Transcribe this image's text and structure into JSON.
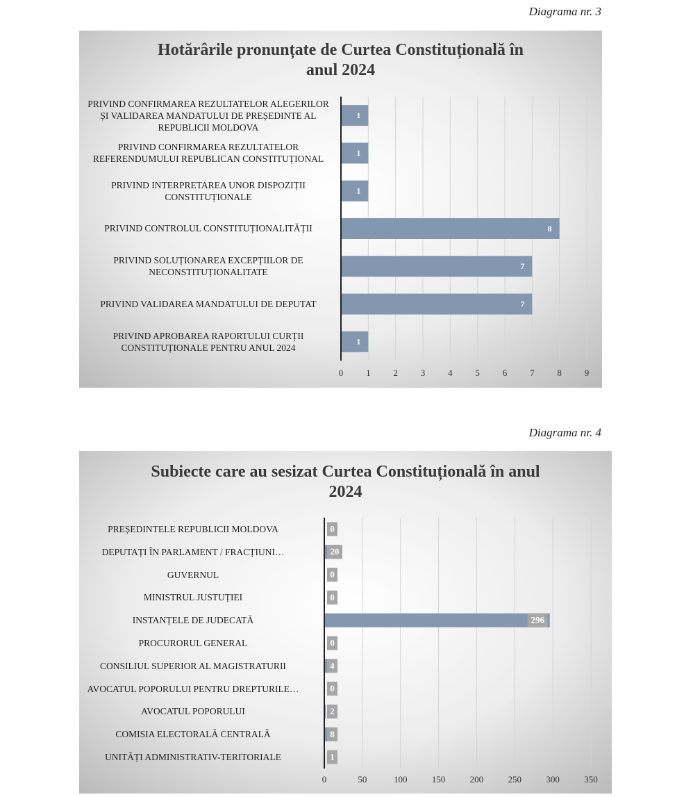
{
  "chart_data": [
    {
      "type": "bar",
      "orientation": "horizontal",
      "caption": "Diagrama nr. 3",
      "title": "Hotărârile pronunțate de Curtea Constituțională în anul 2024",
      "categories": [
        "PRIVIND CONFIRMAREA REZULTATELOR ALEGERILOR ȘI VALIDAREA MANDATULUI DE PREȘEDINTE AL REPUBLICII MOLDOVA",
        "PRIVIND CONFIRMAREA REZULTATELOR REFERENDUMULUI REPUBLICAN CONSTITUȚIONAL",
        "PRIVIND INTERPRETAREA UNOR DISPOZIȚII CONSTITUȚIONALE",
        "PRIVIND CONTROLUL CONSTITUȚIONALITĂȚII",
        "PRIVIND SOLUȚIONAREA EXCEPȚIILOR DE NECONSTITUȚIONALITATE",
        "PRIVIND VALIDAREA MANDATULUI DE DEPUTAT",
        "PRIVIND APROBAREA RAPORTULUI CURȚII CONSTITUȚIONALE PENTRU ANUL 2024"
      ],
      "values": [
        1,
        1,
        1,
        8,
        7,
        7,
        1
      ],
      "color": "#8497b0",
      "xlim": [
        0,
        9
      ],
      "xticks": [
        0,
        1,
        2,
        3,
        4,
        5,
        6,
        7,
        8,
        9
      ],
      "grid": true,
      "label_style": "inside"
    },
    {
      "type": "bar",
      "orientation": "horizontal",
      "caption": "Diagrama nr. 4",
      "title": "Subiecte care au sesizat Curtea Constituțională în anul 2024",
      "categories": [
        "PREȘEDINTELE REPUBLICII MOLDOVA",
        "DEPUTAȚI ÎN PARLAMENT / FRACȚIUNI…",
        "GUVERNUL",
        "MINISTRUL JUSTUȚIEI",
        "INSTANȚELE DE JUDECATĂ",
        "PROCURORUL GENERAL",
        "CONSILIUL SUPERIOR AL MAGISTRATURII",
        "AVOCATUL POPORULUI PENTRU DREPTURILE…",
        "AVOCATUL POPORULUI",
        "COMISIA ELECTORALĂ CENTRALĂ",
        "UNITĂȚI ADMINISTRATIV-TERITORIALE"
      ],
      "values": [
        0,
        20,
        0,
        0,
        296,
        0,
        4,
        0,
        2,
        8,
        1
      ],
      "color": "#8497b0",
      "xlim": [
        0,
        350
      ],
      "xticks": [
        0,
        50,
        100,
        150,
        200,
        250,
        300,
        350
      ],
      "grid": true,
      "label_style": "box"
    }
  ]
}
